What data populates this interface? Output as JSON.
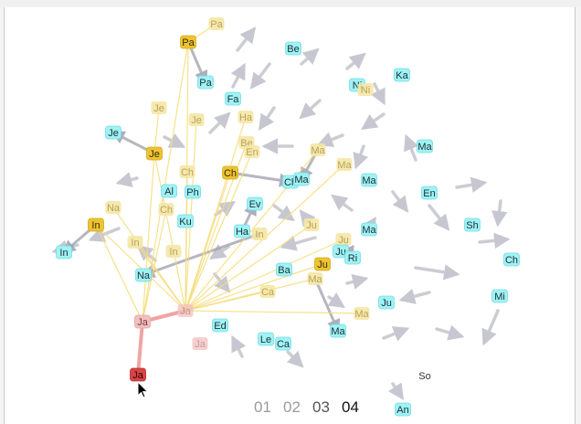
{
  "colors": {
    "cyan_node": "#9ff2f5",
    "cyan_border": "#72dce4",
    "yellow_node": "#ecc333",
    "yellow_faded": "#f6e7a6",
    "red_node": "#d94444",
    "pink_faded": "#f3c0c0",
    "yellow_edge": "#f6dc78",
    "red_edge": "#f1a0a0",
    "grey_edge": "#a4a4b0"
  },
  "timeline": {
    "steps": [
      "01",
      "02",
      "03",
      "04"
    ],
    "active_index": 3
  },
  "nodes": [
    {
      "id": "pa_top",
      "label": "Pa",
      "kind": "yellow-faded"
    },
    {
      "id": "pa_yel",
      "label": "Pa",
      "kind": "yellow"
    },
    {
      "id": "pa_cy",
      "label": "Pa",
      "kind": "cyan"
    },
    {
      "id": "be_top",
      "label": "Be",
      "kind": "cyan"
    },
    {
      "id": "fa",
      "label": "Fa",
      "kind": "cyan"
    },
    {
      "id": "ni",
      "label": "Ni",
      "kind": "cyan"
    },
    {
      "id": "ni_f",
      "label": "Ni",
      "kind": "yellow-faded"
    },
    {
      "id": "ka",
      "label": "Ka",
      "kind": "cyan"
    },
    {
      "id": "je_f1",
      "label": "Je",
      "kind": "yellow-faded"
    },
    {
      "id": "je_f2",
      "label": "Je",
      "kind": "yellow-faded"
    },
    {
      "id": "ha_f",
      "label": "Ha",
      "kind": "yellow-faded"
    },
    {
      "id": "je_cy",
      "label": "Je",
      "kind": "cyan"
    },
    {
      "id": "je_yel",
      "label": "Je",
      "kind": "yellow"
    },
    {
      "id": "be_f",
      "label": "Be",
      "kind": "yellow-faded"
    },
    {
      "id": "en_f",
      "label": "En",
      "kind": "yellow-faded"
    },
    {
      "id": "ma_f1",
      "label": "Ma",
      "kind": "yellow-faded"
    },
    {
      "id": "ma_right",
      "label": "Ma",
      "kind": "cyan"
    },
    {
      "id": "ch_f",
      "label": "Ch",
      "kind": "yellow-faded"
    },
    {
      "id": "ch_yel",
      "label": "Ch",
      "kind": "yellow"
    },
    {
      "id": "ch_cy",
      "label": "Ch",
      "kind": "cyan"
    },
    {
      "id": "ma_cy1",
      "label": "Ma",
      "kind": "cyan"
    },
    {
      "id": "ma_f2",
      "label": "Ma",
      "kind": "yellow-faded"
    },
    {
      "id": "ma_cy2",
      "label": "Ma",
      "kind": "cyan"
    },
    {
      "id": "al",
      "label": "Al",
      "kind": "cyan"
    },
    {
      "id": "ph",
      "label": "Ph",
      "kind": "cyan"
    },
    {
      "id": "en_cy",
      "label": "En",
      "kind": "cyan"
    },
    {
      "id": "ev",
      "label": "Ev",
      "kind": "cyan"
    },
    {
      "id": "na_f",
      "label": "Na",
      "kind": "yellow-faded"
    },
    {
      "id": "ch_f2",
      "label": "Ch",
      "kind": "yellow-faded"
    },
    {
      "id": "ku",
      "label": "Ku",
      "kind": "cyan"
    },
    {
      "id": "sh",
      "label": "Sh",
      "kind": "cyan"
    },
    {
      "id": "in_yel",
      "label": "In",
      "kind": "yellow"
    },
    {
      "id": "ha_cy",
      "label": "Ha",
      "kind": "cyan"
    },
    {
      "id": "in_f",
      "label": "In",
      "kind": "yellow-faded"
    },
    {
      "id": "ju_f1",
      "label": "Ju",
      "kind": "yellow-faded"
    },
    {
      "id": "ma_cy3",
      "label": "Ma",
      "kind": "cyan"
    },
    {
      "id": "in_f2",
      "label": "In",
      "kind": "yellow-faded"
    },
    {
      "id": "in_f3",
      "label": "In",
      "kind": "yellow-faded"
    },
    {
      "id": "in_cy",
      "label": "In",
      "kind": "cyan"
    },
    {
      "id": "ju_f2",
      "label": "Ju",
      "kind": "yellow-faded"
    },
    {
      "id": "ju_cy1",
      "label": "Ju",
      "kind": "cyan"
    },
    {
      "id": "ri",
      "label": "Ri",
      "kind": "cyan"
    },
    {
      "id": "ch_cy2",
      "label": "Ch",
      "kind": "cyan"
    },
    {
      "id": "ba",
      "label": "Ba",
      "kind": "cyan"
    },
    {
      "id": "ju_yel",
      "label": "Ju",
      "kind": "yellow"
    },
    {
      "id": "na_cy",
      "label": "Na",
      "kind": "cyan"
    },
    {
      "id": "ma_f3",
      "label": "Ma",
      "kind": "yellow-faded"
    },
    {
      "id": "ca_f",
      "label": "Ca",
      "kind": "yellow-faded"
    },
    {
      "id": "mi",
      "label": "Mi",
      "kind": "cyan"
    },
    {
      "id": "ju_cy2",
      "label": "Ju",
      "kind": "cyan"
    },
    {
      "id": "ja_mid",
      "label": "Ja",
      "kind": "pink-faded"
    },
    {
      "id": "ma_f4",
      "label": "Ma",
      "kind": "yellow-faded"
    },
    {
      "id": "ja_left",
      "label": "Ja",
      "kind": "pink"
    },
    {
      "id": "ed",
      "label": "Ed",
      "kind": "cyan"
    },
    {
      "id": "ma_cy4",
      "label": "Ma",
      "kind": "cyan"
    },
    {
      "id": "le",
      "label": "Le",
      "kind": "cyan"
    },
    {
      "id": "ca_cy",
      "label": "Ca",
      "kind": "cyan"
    },
    {
      "id": "ja_low",
      "label": "Ja",
      "kind": "pink-faded"
    },
    {
      "id": "ja_red",
      "label": "Ja",
      "kind": "red"
    },
    {
      "id": "so",
      "label": "So",
      "kind": "plain"
    },
    {
      "id": "an",
      "label": "An",
      "kind": "cyan"
    }
  ],
  "links": [
    {
      "from": "pa_yel",
      "to": "pa_cy",
      "kind": "grey"
    },
    {
      "from": "pa_top",
      "to": "pa_yel",
      "kind": "yellow"
    },
    {
      "from": "je_f1",
      "to": "je_yel",
      "kind": "yellow"
    },
    {
      "from": "je_yel",
      "to": "je_cy",
      "kind": "grey"
    },
    {
      "from": "in_yel",
      "to": "in_cy",
      "kind": "grey"
    },
    {
      "from": "in_f",
      "to": "na_cy",
      "kind": "grey"
    },
    {
      "from": "ha_cy",
      "to": "ev",
      "kind": "grey"
    },
    {
      "from": "ch_yel",
      "to": "ch_cy",
      "kind": "grey"
    },
    {
      "from": "ma_f1",
      "to": "ma_cy1",
      "kind": "grey"
    },
    {
      "from": "ju_f2",
      "to": "ri",
      "kind": "grey"
    },
    {
      "from": "ma_f3",
      "to": "ma_cy4",
      "kind": "grey"
    },
    {
      "from": "ja_mid",
      "to": "ja_left",
      "kind": "red"
    },
    {
      "from": "ja_left",
      "to": "ja_red",
      "kind": "red"
    },
    {
      "from": "ja_mid",
      "to": "pa_yel",
      "kind": "yellow"
    },
    {
      "from": "ja_mid",
      "to": "je_yel",
      "kind": "yellow"
    },
    {
      "from": "ja_mid",
      "to": "je_f2",
      "kind": "yellow"
    },
    {
      "from": "ja_mid",
      "to": "ch_yel",
      "kind": "yellow"
    },
    {
      "from": "ja_mid",
      "to": "ch_f",
      "kind": "yellow"
    },
    {
      "from": "ja_mid",
      "to": "be_f",
      "kind": "yellow"
    },
    {
      "from": "ja_mid",
      "to": "in_yel",
      "kind": "yellow"
    },
    {
      "from": "ja_mid",
      "to": "na_f",
      "kind": "yellow"
    },
    {
      "from": "ja_mid",
      "to": "in_f2",
      "kind": "yellow"
    },
    {
      "from": "ja_mid",
      "to": "ma_f3",
      "kind": "yellow"
    },
    {
      "from": "ja_mid",
      "to": "ju_yel",
      "kind": "yellow"
    },
    {
      "from": "ja_mid",
      "to": "ju_f2",
      "kind": "yellow"
    },
    {
      "from": "ja_mid",
      "to": "ma_f1",
      "kind": "yellow"
    },
    {
      "from": "ja_mid",
      "to": "ma_f2",
      "kind": "yellow"
    },
    {
      "from": "ja_mid",
      "to": "ca_f",
      "kind": "yellow"
    },
    {
      "from": "ja_mid",
      "to": "ha_f",
      "kind": "yellow"
    },
    {
      "from": "ja_mid",
      "to": "en_f",
      "kind": "yellow"
    },
    {
      "from": "ja_mid",
      "to": "ju_f1",
      "kind": "yellow"
    },
    {
      "from": "ja_mid",
      "to": "ma_f4",
      "kind": "yellow"
    },
    {
      "from": "ja_left",
      "to": "in_yel",
      "kind": "yellow"
    },
    {
      "from": "ja_left",
      "to": "ch_f2",
      "kind": "yellow"
    },
    {
      "from": "ja_left",
      "to": "pa_yel",
      "kind": "yellow"
    },
    {
      "from": "ja_left",
      "to": "je_yel",
      "kind": "yellow"
    }
  ]
}
